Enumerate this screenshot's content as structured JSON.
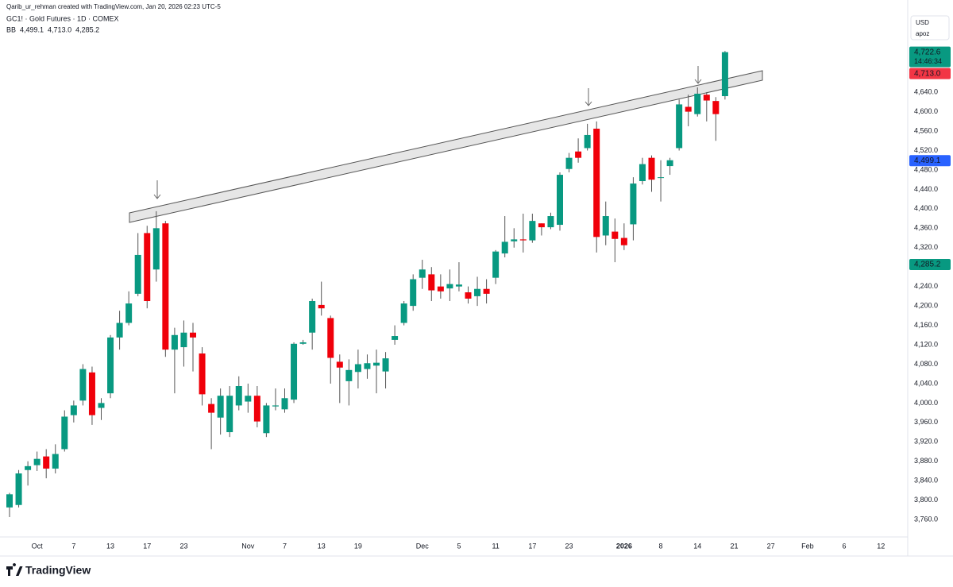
{
  "header": {
    "credit": "Qarib_ur_rehman created with TradingView.com, Jan 20, 2026 02:23 UTC-5",
    "symbol": "GC1! · Gold Futures · 1D · COMEX",
    "indicator": "BB",
    "currency": "USD",
    "scale_mode": "apoz"
  },
  "footer": {
    "brand": "TradingView"
  },
  "chart_data": {
    "type": "candlestick",
    "up_color": "#089981",
    "down_color": "#f0000a",
    "categories": [
      null,
      null,
      null,
      "Oct",
      null,
      null,
      null,
      "7",
      null,
      null,
      null,
      "13",
      null,
      null,
      null,
      "17",
      null,
      null,
      null,
      "23",
      null,
      null,
      null,
      null,
      null,
      null,
      "Nov",
      null,
      null,
      null,
      "7",
      null,
      null,
      null,
      "13",
      null,
      null,
      null,
      "19",
      null,
      null,
      null,
      null,
      null,
      null,
      "Dec",
      null,
      null,
      null,
      "5",
      null,
      null,
      null,
      "11",
      null,
      null,
      null,
      "17",
      null,
      null,
      null,
      "23",
      null,
      null,
      null,
      null,
      null,
      "2026",
      null,
      null,
      null,
      "8",
      null,
      null,
      null,
      "14",
      null,
      null,
      null,
      "21",
      null,
      null,
      null,
      "27",
      null,
      null,
      null,
      "Feb",
      null,
      null,
      null,
      "6",
      null,
      null,
      null,
      "12"
    ],
    "open": [
      3785,
      3790,
      3862,
      3872,
      3890,
      3865,
      3905,
      3975,
      4005,
      4063,
      3990,
      4020,
      4135,
      4165,
      4225,
      4350,
      4275,
      4370,
      4110,
      4115,
      4145,
      4102,
      3998,
      3970,
      3940,
      3995,
      4003,
      4015,
      3938,
      3993,
      3987,
      4007,
      4122,
      4145,
      4202,
      4175,
      4085,
      4045,
      4064,
      4070,
      4077,
      4065,
      4130,
      4165,
      4200,
      4258,
      4265,
      4240,
      4236,
      4240,
      4228,
      4220,
      4235,
      4258,
      4308,
      4333,
      4337,
      4335,
      4370,
      4362,
      4367,
      4482,
      4518,
      4525,
      4565,
      4345,
      4353,
      4340,
      4368,
      4457,
      4505,
      4465,
      4488,
      4525,
      4610,
      4595,
      4635,
      4622,
      4632,
      null,
      null,
      null,
      null,
      null,
      null,
      null,
      null,
      null,
      null,
      null,
      null,
      null,
      null,
      null,
      null,
      null
    ],
    "high": [
      3815,
      3862,
      3880,
      3900,
      3905,
      3915,
      3985,
      4005,
      4080,
      4075,
      4010,
      4140,
      4190,
      4230,
      4350,
      4365,
      4395,
      4375,
      4155,
      4170,
      4165,
      4115,
      4010,
      4030,
      4035,
      4055,
      4040,
      4035,
      4000,
      4030,
      4030,
      4125,
      4130,
      4215,
      4250,
      4180,
      4100,
      4090,
      4110,
      4100,
      4110,
      4105,
      4160,
      4210,
      4265,
      4295,
      4280,
      4265,
      4275,
      4290,
      4240,
      4260,
      4255,
      4315,
      4385,
      4360,
      4390,
      4390,
      4370,
      4392,
      4475,
      4515,
      4545,
      4575,
      4580,
      4415,
      4380,
      4370,
      4465,
      4505,
      4510,
      4500,
      4505,
      4625,
      4635,
      4650,
      4640,
      4630,
      4725,
      null,
      null,
      null,
      null,
      null,
      null,
      null,
      null,
      null,
      null,
      null,
      null,
      null,
      null,
      null,
      null,
      null
    ],
    "low": [
      3765,
      3785,
      3830,
      3860,
      3845,
      3855,
      3900,
      3960,
      3995,
      3955,
      3965,
      4010,
      4110,
      4160,
      4220,
      4195,
      4250,
      4095,
      4020,
      4075,
      4065,
      3995,
      3905,
      3935,
      3930,
      3985,
      3980,
      3950,
      3930,
      3985,
      3980,
      4000,
      4120,
      4110,
      4180,
      4040,
      4000,
      3995,
      4030,
      4050,
      4020,
      4030,
      4120,
      4160,
      4190,
      4235,
      4210,
      4215,
      4210,
      4230,
      4205,
      4200,
      4205,
      4245,
      4300,
      4320,
      4310,
      4330,
      4345,
      4358,
      4355,
      4475,
      4495,
      4520,
      4310,
      4325,
      4290,
      4315,
      4335,
      4450,
      4435,
      4415,
      4470,
      4520,
      4570,
      4590,
      4580,
      4540,
      4625,
      null,
      null,
      null,
      null,
      null,
      null,
      null,
      null,
      null,
      null,
      null,
      null,
      null,
      null,
      null,
      null,
      null
    ],
    "close": [
      3812,
      3855,
      3870,
      3885,
      3865,
      3895,
      3972,
      3995,
      4070,
      3975,
      4000,
      4135,
      4165,
      4205,
      4305,
      4210,
      4360,
      4110,
      4140,
      4145,
      4135,
      4018,
      3980,
      4015,
      4015,
      4035,
      4015,
      3962,
      3995,
      3995,
      4010,
      4122,
      4125,
      4210,
      4195,
      4093,
      4073,
      4068,
      4080,
      4082,
      4083,
      4092,
      4138,
      4205,
      4255,
      4275,
      4232,
      4230,
      4245,
      4244,
      4215,
      4235,
      4225,
      4312,
      4332,
      4337,
      4335,
      4375,
      4362,
      4385,
      4470,
      4505,
      4505,
      4552,
      4342,
      4385,
      4338,
      4325,
      4452,
      4492,
      4460,
      4465,
      4500,
      4615,
      4600,
      4637,
      4623,
      4595,
      4722.6,
      null,
      null,
      null,
      null,
      null,
      null,
      null,
      null,
      null,
      null,
      null,
      null,
      null,
      null,
      null,
      null,
      null
    ],
    "bands": [
      {
        "value": 4499.1,
        "label": "4,499.1",
        "color": "#2962ff"
      },
      {
        "value": 4713.0,
        "label": "4,713.0",
        "color": "#f23645"
      },
      {
        "value": 4285.2,
        "label": "4,285.2",
        "color": "#089981"
      }
    ],
    "last": {
      "value": 4722.6,
      "label": "4,722.6",
      "countdown": "14:46:34",
      "color": "#089981"
    },
    "ylim": [
      3680,
      4830
    ],
    "yticks": [
      {
        "value": 3760,
        "label": "3,760.0"
      },
      {
        "value": 3800,
        "label": "3,800.0"
      },
      {
        "value": 3840,
        "label": "3,840.0"
      },
      {
        "value": 3880,
        "label": "3,880.0"
      },
      {
        "value": 3920,
        "label": "3,920.0"
      },
      {
        "value": 3960,
        "label": "3,960.0"
      },
      {
        "value": 4000,
        "label": "4,000.0"
      },
      {
        "value": 4040,
        "label": "4,040.0"
      },
      {
        "value": 4080,
        "label": "4,080.0"
      },
      {
        "value": 4120,
        "label": "4,120.0"
      },
      {
        "value": 4160,
        "label": "4,160.0"
      },
      {
        "value": 4200,
        "label": "4,200.0"
      },
      {
        "value": 4240,
        "label": "4,240.0"
      },
      {
        "value": 4320,
        "label": "4,320.0"
      },
      {
        "value": 4360,
        "label": "4,360.0"
      },
      {
        "value": 4400,
        "label": "4,400.0"
      },
      {
        "value": 4440,
        "label": "4,440.0"
      },
      {
        "value": 4480,
        "label": "4,480.0"
      },
      {
        "value": 4520,
        "label": "4,520.0"
      },
      {
        "value": 4560,
        "label": "4,560.0"
      },
      {
        "value": 4600,
        "label": "4,600.0"
      },
      {
        "value": 4640,
        "label": "4,640.0"
      }
    ],
    "grid": false
  }
}
